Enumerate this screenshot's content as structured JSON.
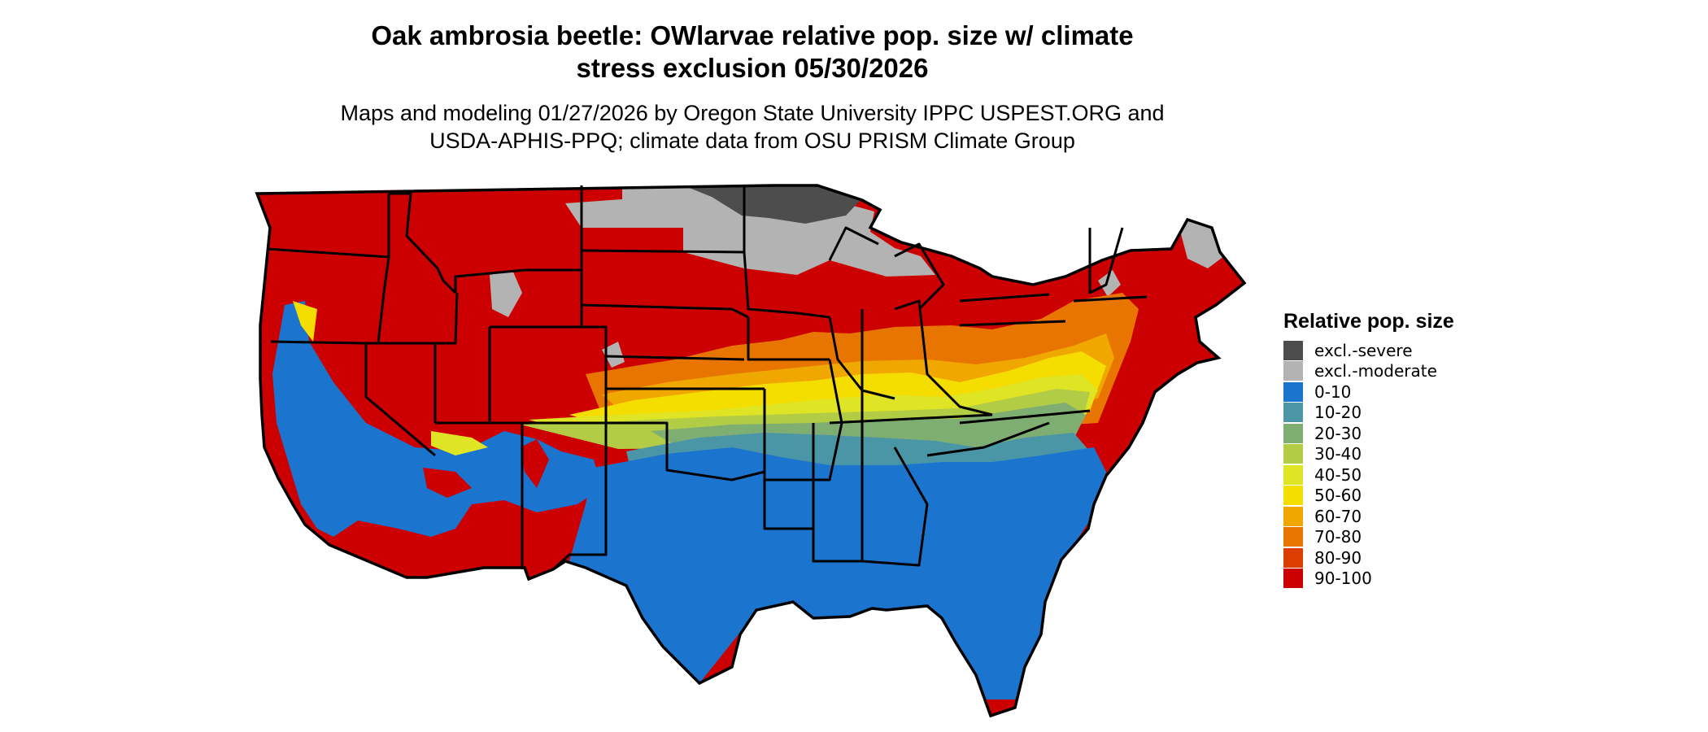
{
  "title": {
    "line1": "Oak ambrosia beetle: OWlarvae relative pop. size w/ climate",
    "line2": "stress exclusion 05/30/2026"
  },
  "subtitle": {
    "line1": "Maps and modeling 01/27/2026 by Oregon State University IPPC USPEST.ORG and",
    "line2": "USDA-APHIS-PPQ; climate data from OSU PRISM Climate Group"
  },
  "legend": {
    "title": "Relative pop. size",
    "items": [
      {
        "label": "excl.-severe",
        "color": "#4d4d4d"
      },
      {
        "label": "excl.-moderate",
        "color": "#b3b3b3"
      },
      {
        "label": "0-10",
        "color": "#1b75cf"
      },
      {
        "label": "10-20",
        "color": "#4a96a6"
      },
      {
        "label": "20-30",
        "color": "#7eae72"
      },
      {
        "label": "30-40",
        "color": "#b2cc45"
      },
      {
        "label": "40-50",
        "color": "#dfe425"
      },
      {
        "label": "50-60",
        "color": "#f5dd00"
      },
      {
        "label": "60-70",
        "color": "#f0a800"
      },
      {
        "label": "70-80",
        "color": "#e87500"
      },
      {
        "label": "80-90",
        "color": "#dc3d00"
      },
      {
        "label": "90-100",
        "color": "#cc0000"
      }
    ]
  },
  "map": {
    "region": "Contiguous United States",
    "border_color": "#000000"
  }
}
